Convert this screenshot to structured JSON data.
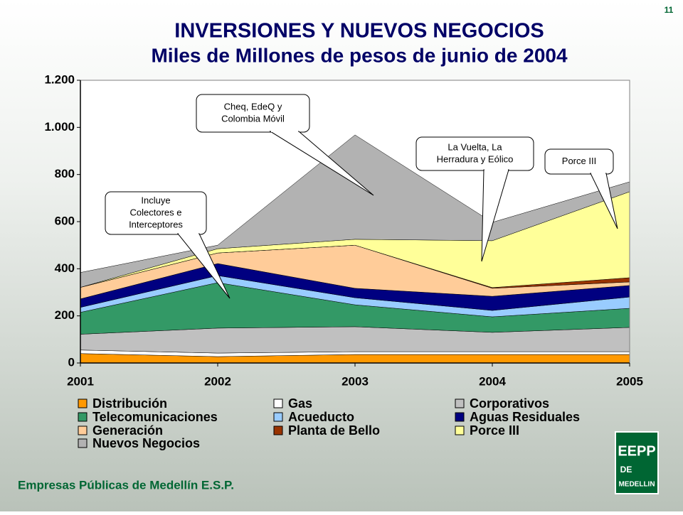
{
  "page_number": "11",
  "footer": "Empresas Públicas de Medellín E.S.P.",
  "logo": {
    "lines": [
      "EEPP",
      "DE",
      "MEDELLIN"
    ]
  },
  "chart_data": {
    "type": "stacked_area",
    "title": "INVERSIONES Y NUEVOS NEGOCIOS",
    "subtitle": "Miles de Millones de pesos de junio de 2004",
    "x": [
      2001,
      2002,
      2003,
      2004,
      2005
    ],
    "xlim": [
      2001,
      2005
    ],
    "xticks": [
      2001,
      2002,
      2003,
      2004,
      2005
    ],
    "ylim": [
      0,
      1200
    ],
    "yticks": [
      0,
      200,
      400,
      600,
      800,
      {
        "value": 1000,
        "label": "1.000"
      },
      {
        "value": 1200,
        "label": "1.200"
      }
    ],
    "grid": false,
    "series": [
      {
        "name": "Distribución",
        "color": "#ff9900",
        "values": [
          40,
          27,
          36,
          36,
          36
        ]
      },
      {
        "name": "Gas",
        "color": "#ffffff",
        "values": [
          15,
          15,
          12,
          12,
          12
        ]
      },
      {
        "name": "Corporativos",
        "color": "#c0c0c0",
        "values": [
          67,
          106,
          106,
          82,
          103
        ]
      },
      {
        "name": "Telecomunicaciones",
        "color": "#339966",
        "values": [
          93,
          193,
          93,
          66,
          81
        ]
      },
      {
        "name": "Acueducto",
        "color": "#99ccff",
        "values": [
          21,
          30,
          30,
          27,
          48
        ]
      },
      {
        "name": "Aguas Residuales",
        "color": "#000080",
        "values": [
          36,
          51,
          40,
          60,
          49
        ]
      },
      {
        "name": "Generación",
        "color": "#ffcc99",
        "values": [
          49,
          45,
          183,
          34,
          15
        ]
      },
      {
        "name": "Planta de Bello",
        "color": "#993300",
        "values": [
          0,
          0,
          0,
          3,
          18
        ]
      },
      {
        "name": "Porce III",
        "color": "#ffff99",
        "values": [
          0,
          18,
          25,
          199,
          365
        ]
      },
      {
        "name": "Nuevos Negocios",
        "color": "#b2b2b2",
        "values": [
          63,
          15,
          443,
          78,
          42
        ]
      }
    ],
    "annotations": [
      {
        "lines": [
          "Incluye",
          "Colectores e",
          "Interceptores"
        ]
      },
      {
        "lines": [
          "Cheq, EdeQ y",
          "Colombia Móvil"
        ]
      },
      {
        "lines": [
          "La Vuelta, La",
          "Herradura y Eólico"
        ]
      },
      {
        "lines": [
          "Porce III"
        ]
      }
    ]
  }
}
